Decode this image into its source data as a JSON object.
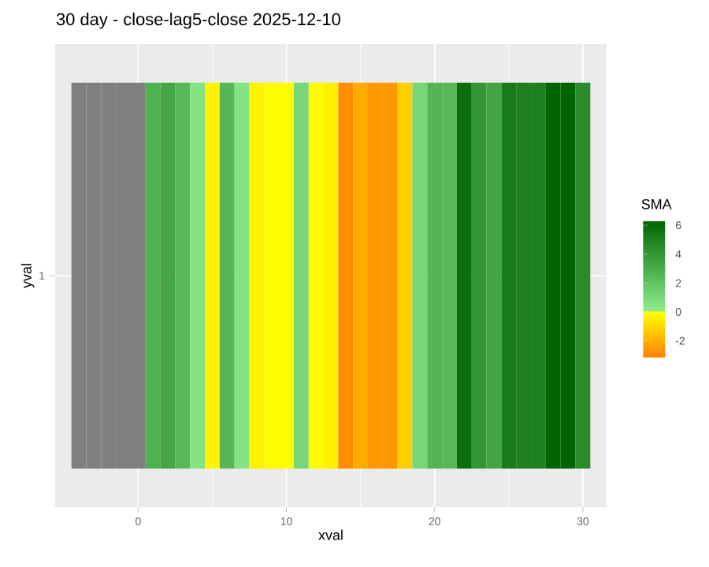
{
  "chart_data": {
    "type": "heatmap",
    "title": "30 day - close-lag5-close  2025-12-10",
    "xlabel": "xval",
    "ylabel": "yval",
    "legend_title": "SMA",
    "x": [
      -4,
      -3,
      -2,
      -1,
      0,
      1,
      2,
      3,
      4,
      5,
      6,
      7,
      8,
      9,
      10,
      11,
      12,
      13,
      14,
      15,
      16,
      17,
      18,
      19,
      20,
      21,
      22,
      23,
      24,
      25,
      26,
      27,
      28,
      29,
      30
    ],
    "y_categories": [
      "1"
    ],
    "cells": [
      [
        null,
        null,
        null,
        null,
        null,
        2.8,
        3.3,
        2.4,
        0.5,
        -0.3,
        2.5,
        0.5,
        -0.3,
        -0.1,
        -0.1,
        1.1,
        -0.1,
        -0.4,
        -2.9,
        -2.1,
        -2.6,
        -2.6,
        -1.2,
        1.1,
        2.6,
        2.4,
        5.8,
        4.0,
        3.4,
        5.2,
        5.0,
        5.0,
        6.3,
        6.3,
        4.5
      ]
    ],
    "xlim": [
      -5.6,
      31.6
    ],
    "xticks": [
      0,
      10,
      20,
      30
    ],
    "clim": [
      -3.2,
      6.3
    ],
    "cticks": [
      -2,
      0,
      2,
      4,
      6
    ],
    "grid": true
  }
}
